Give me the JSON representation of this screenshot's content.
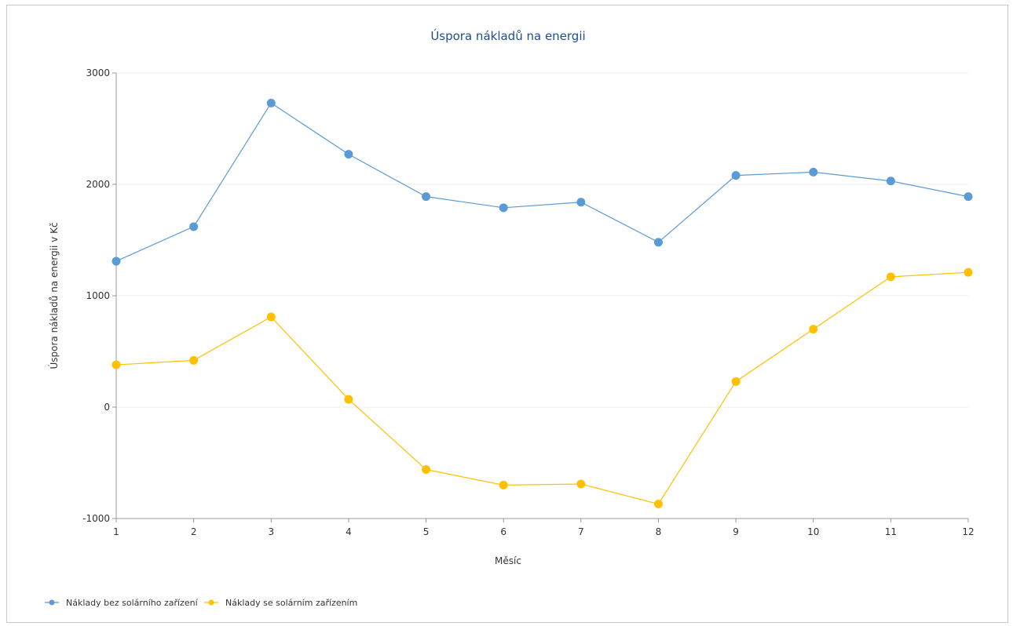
{
  "chart_data": {
    "type": "line",
    "title": "Úspora nákladů na energii",
    "xlabel": "Měsíc",
    "ylabel": "Úspora nákladů na energii v Kč",
    "x": [
      1,
      2,
      3,
      4,
      5,
      6,
      7,
      8,
      9,
      10,
      11,
      12
    ],
    "ylim": [
      -1000,
      3000
    ],
    "yticks": [
      -1000,
      0,
      1000,
      2000,
      3000
    ],
    "grid": true,
    "legend": "bottom-left",
    "series": [
      {
        "name": "Náklady bez solárního zařízení",
        "color": "#5b9bd5",
        "values": [
          1310,
          1620,
          2730,
          2270,
          1890,
          1790,
          1840,
          1480,
          2080,
          2110,
          2030,
          1890
        ]
      },
      {
        "name": "Náklady se solárním zařízením",
        "color": "#ffc000",
        "values": [
          380,
          420,
          810,
          70,
          -560,
          -700,
          -690,
          -870,
          230,
          700,
          1170,
          1210
        ]
      }
    ]
  }
}
